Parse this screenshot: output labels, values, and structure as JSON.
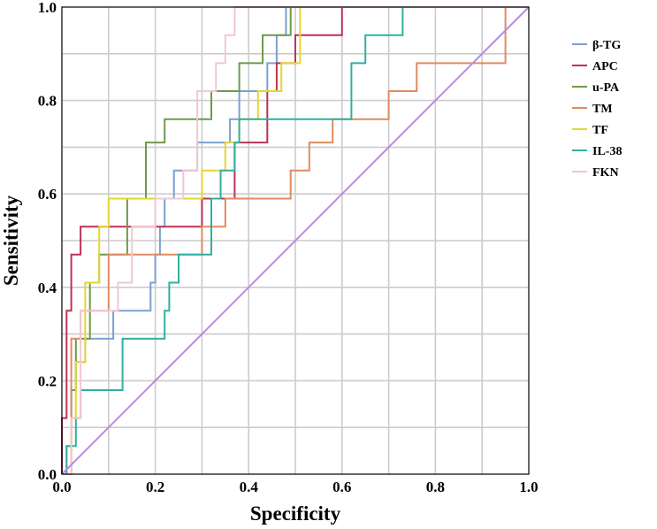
{
  "chart_data": {
    "type": "line",
    "title": "",
    "xlabel": "Specificity",
    "ylabel": "Sensitivity",
    "xlim": [
      0,
      1
    ],
    "ylim": [
      0,
      1
    ],
    "xticks": [
      "0.0",
      "0.2",
      "0.4",
      "0.6",
      "0.8",
      "1.0"
    ],
    "yticks": [
      "0.0",
      "0.2",
      "0.4",
      "0.6",
      "0.8",
      "1.0"
    ],
    "grid": true,
    "legend_position": "right",
    "series": [
      {
        "name": "β-TG",
        "color": "#7ba0d0",
        "x": [
          0,
          0.01,
          0.01,
          0.02,
          0.02,
          0.03,
          0.03,
          0.05,
          0.05,
          0.11,
          0.11,
          0.19,
          0.19,
          0.2,
          0.2,
          0.21,
          0.21,
          0.22,
          0.22,
          0.24,
          0.24,
          0.29,
          0.29,
          0.36,
          0.36,
          0.38,
          0.38,
          0.44,
          0.44,
          0.46,
          0.46,
          0.48,
          0.48,
          0.6,
          0.6,
          1
        ],
        "y": [
          0,
          0,
          0.06,
          0.06,
          0.18,
          0.18,
          0.24,
          0.24,
          0.29,
          0.29,
          0.35,
          0.35,
          0.41,
          0.41,
          0.47,
          0.47,
          0.53,
          0.53,
          0.59,
          0.59,
          0.65,
          0.65,
          0.71,
          0.71,
          0.76,
          0.76,
          0.82,
          0.82,
          0.88,
          0.88,
          0.94,
          0.94,
          1,
          1,
          1,
          1
        ]
      },
      {
        "name": "APC",
        "color": "#bb3355",
        "x": [
          0,
          0,
          0.01,
          0.01,
          0.02,
          0.02,
          0.04,
          0.04,
          0.3,
          0.3,
          0.37,
          0.37,
          0.44,
          0.44,
          0.46,
          0.46,
          0.5,
          0.5,
          0.55,
          0.55,
          0.6,
          0.6,
          1
        ],
        "y": [
          0,
          0.12,
          0.12,
          0.35,
          0.35,
          0.47,
          0.47,
          0.53,
          0.53,
          0.59,
          0.59,
          0.71,
          0.71,
          0.82,
          0.82,
          0.88,
          0.88,
          0.94,
          0.94,
          0.94,
          0.94,
          1,
          1
        ]
      },
      {
        "name": "u-PA",
        "color": "#6d9a4c",
        "x": [
          0,
          0.02,
          0.02,
          0.03,
          0.03,
          0.06,
          0.06,
          0.08,
          0.08,
          0.14,
          0.14,
          0.18,
          0.18,
          0.22,
          0.22,
          0.26,
          0.26,
          0.32,
          0.32,
          0.38,
          0.38,
          0.41,
          0.41,
          0.43,
          0.43,
          0.45,
          0.45,
          0.49,
          0.49,
          0.59,
          0.59,
          1
        ],
        "y": [
          0,
          0,
          0.18,
          0.18,
          0.29,
          0.29,
          0.41,
          0.41,
          0.47,
          0.47,
          0.59,
          0.59,
          0.71,
          0.71,
          0.76,
          0.76,
          0.76,
          0.76,
          0.82,
          0.82,
          0.88,
          0.88,
          0.88,
          0.88,
          0.94,
          0.94,
          0.94,
          0.94,
          1,
          1,
          1,
          1
        ]
      },
      {
        "name": "TM",
        "color": "#e08a62",
        "x": [
          0,
          0.02,
          0.02,
          0.04,
          0.04,
          0.1,
          0.1,
          0.3,
          0.3,
          0.32,
          0.32,
          0.35,
          0.35,
          0.41,
          0.41,
          0.49,
          0.49,
          0.53,
          0.53,
          0.58,
          0.58,
          0.62,
          0.62,
          0.7,
          0.7,
          0.76,
          0.76,
          0.8,
          0.8,
          0.95,
          0.95,
          1
        ],
        "y": [
          0,
          0,
          0.29,
          0.29,
          0.35,
          0.35,
          0.47,
          0.47,
          0.53,
          0.53,
          0.53,
          0.53,
          0.59,
          0.59,
          0.59,
          0.59,
          0.65,
          0.65,
          0.71,
          0.71,
          0.76,
          0.76,
          0.76,
          0.76,
          0.82,
          0.82,
          0.88,
          0.88,
          0.88,
          0.88,
          1,
          1
        ]
      },
      {
        "name": "TF",
        "color": "#e6d630",
        "x": [
          0,
          0.02,
          0.02,
          0.03,
          0.03,
          0.05,
          0.05,
          0.08,
          0.08,
          0.1,
          0.1,
          0.3,
          0.3,
          0.35,
          0.35,
          0.38,
          0.38,
          0.42,
          0.42,
          0.47,
          0.47,
          0.51,
          0.51,
          1
        ],
        "y": [
          0,
          0,
          0.12,
          0.12,
          0.24,
          0.24,
          0.41,
          0.41,
          0.53,
          0.53,
          0.59,
          0.59,
          0.65,
          0.65,
          0.71,
          0.71,
          0.76,
          0.76,
          0.82,
          0.82,
          0.88,
          0.88,
          1,
          1
        ]
      },
      {
        "name": "IL-38",
        "color": "#2fb0a0",
        "x": [
          0,
          0.01,
          0.01,
          0.03,
          0.03,
          0.04,
          0.04,
          0.08,
          0.08,
          0.13,
          0.13,
          0.22,
          0.22,
          0.23,
          0.23,
          0.25,
          0.25,
          0.32,
          0.32,
          0.34,
          0.34,
          0.37,
          0.37,
          0.38,
          0.38,
          0.62,
          0.62,
          0.65,
          0.65,
          0.73,
          0.73,
          1
        ],
        "y": [
          0,
          0,
          0.06,
          0.06,
          0.12,
          0.12,
          0.18,
          0.18,
          0.18,
          0.18,
          0.29,
          0.29,
          0.35,
          0.35,
          0.41,
          0.41,
          0.47,
          0.47,
          0.59,
          0.59,
          0.65,
          0.65,
          0.71,
          0.71,
          0.76,
          0.76,
          0.88,
          0.88,
          0.94,
          0.94,
          1,
          1
        ]
      },
      {
        "name": "FKN",
        "color": "#f2c7d1",
        "x": [
          0,
          0.02,
          0.02,
          0.04,
          0.04,
          0.12,
          0.12,
          0.15,
          0.15,
          0.2,
          0.2,
          0.26,
          0.26,
          0.29,
          0.29,
          0.33,
          0.33,
          0.35,
          0.35,
          0.37,
          0.37,
          1
        ],
        "y": [
          0,
          0,
          0.12,
          0.12,
          0.35,
          0.35,
          0.41,
          0.41,
          0.53,
          0.53,
          0.59,
          0.59,
          0.65,
          0.65,
          0.82,
          0.82,
          0.88,
          0.88,
          0.94,
          0.94,
          1,
          1
        ]
      },
      {
        "name": "reference",
        "color": "#b48ce0",
        "x": [
          0,
          1
        ],
        "y": [
          0,
          1
        ],
        "in_legend": false
      }
    ]
  }
}
